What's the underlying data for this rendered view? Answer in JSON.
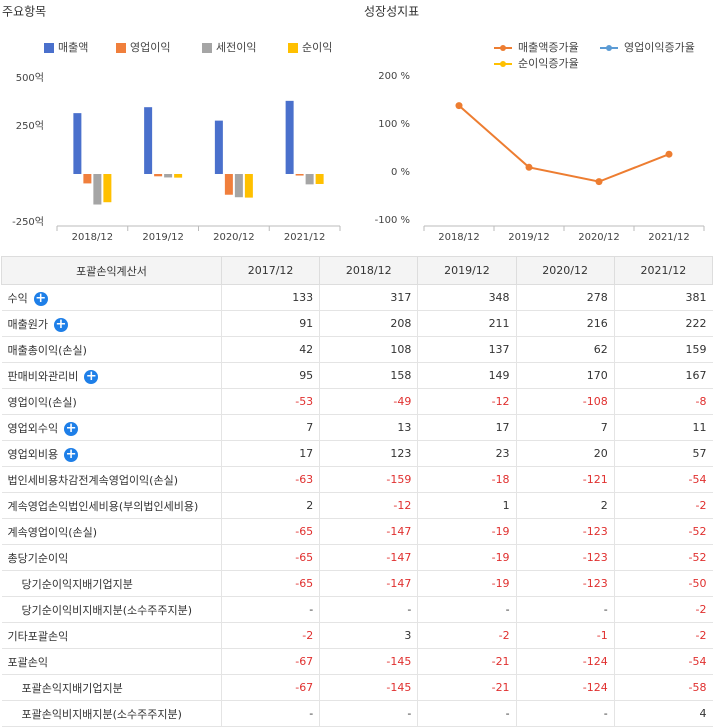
{
  "chart_data": [
    {
      "type": "bar",
      "title": "주요항목",
      "categories": [
        "2018/12",
        "2019/12",
        "2020/12",
        "2021/12"
      ],
      "series": [
        {
          "name": "매출액",
          "color": "#4a70cc",
          "values": [
            317,
            348,
            278,
            381
          ]
        },
        {
          "name": "영업이익",
          "color": "#f07f3c",
          "values": [
            -49,
            -12,
            -108,
            -8
          ]
        },
        {
          "name": "세전이익",
          "color": "#a5a5a5",
          "values": [
            -159,
            -18,
            -121,
            -54
          ]
        },
        {
          "name": "순이익",
          "color": "#ffc000",
          "values": [
            -147,
            -19,
            -123,
            -52
          ]
        }
      ],
      "ylim": [
        -250,
        500
      ],
      "yticks": [
        {
          "value": 500,
          "label": "500억"
        },
        {
          "value": 250,
          "label": "250억"
        },
        {
          "value": -250,
          "label": "-250억"
        }
      ],
      "grid": false
    },
    {
      "type": "line",
      "title": "성장성지표",
      "categories": [
        "2018/12",
        "2019/12",
        "2020/12",
        "2021/12"
      ],
      "series": [
        {
          "name": "매출액증가율",
          "color": "#ed7d31",
          "values": [
            138.3,
            9.8,
            -20.1,
            37.1
          ]
        },
        {
          "name": "영업이익증가율",
          "color": "#5b9bd5",
          "values": [
            null,
            null,
            null,
            null
          ]
        },
        {
          "name": "순이익증가율",
          "color": "#ffc000",
          "values": [
            null,
            null,
            null,
            null
          ]
        }
      ],
      "ylim": [
        -100,
        200
      ],
      "yticks": [
        {
          "value": 200,
          "label": "200 %"
        },
        {
          "value": 100,
          "label": "100 %"
        },
        {
          "value": 0,
          "label": "0 %"
        },
        {
          "value": -100,
          "label": "-100 %"
        }
      ],
      "grid": false
    }
  ],
  "table": {
    "header": [
      "포괄손익계산서",
      "2017/12",
      "2018/12",
      "2019/12",
      "2020/12",
      "2021/12"
    ],
    "rows": [
      {
        "label": "수익",
        "expandable": true,
        "indent": false,
        "values": [
          133,
          317,
          348,
          278,
          381
        ]
      },
      {
        "label": "매출원가",
        "expandable": true,
        "indent": false,
        "values": [
          91,
          208,
          211,
          216,
          222
        ]
      },
      {
        "label": "매출총이익(손실)",
        "expandable": false,
        "indent": false,
        "values": [
          42,
          108,
          137,
          62,
          159
        ]
      },
      {
        "label": "판매비와관리비",
        "expandable": true,
        "indent": false,
        "values": [
          95,
          158,
          149,
          170,
          167
        ]
      },
      {
        "label": "영업이익(손실)",
        "expandable": false,
        "indent": false,
        "values": [
          -53,
          -49,
          -12,
          -108,
          -8
        ]
      },
      {
        "label": "영업외수익",
        "expandable": true,
        "indent": false,
        "values": [
          7,
          13,
          17,
          7,
          11
        ]
      },
      {
        "label": "영업외비용",
        "expandable": true,
        "indent": false,
        "values": [
          17,
          123,
          23,
          20,
          57
        ]
      },
      {
        "label": "법인세비용차감전계속영업이익(손실)",
        "expandable": false,
        "indent": false,
        "values": [
          -63,
          -159,
          -18,
          -121,
          -54
        ]
      },
      {
        "label": "계속영업손익법인세비용(부의법인세비용)",
        "expandable": false,
        "indent": false,
        "values": [
          2,
          -12,
          1,
          2,
          -2
        ]
      },
      {
        "label": "계속영업이익(손실)",
        "expandable": false,
        "indent": false,
        "values": [
          -65,
          -147,
          -19,
          -123,
          -52
        ]
      },
      {
        "label": "총당기순이익",
        "expandable": false,
        "indent": false,
        "values": [
          -65,
          -147,
          -19,
          -123,
          -52
        ]
      },
      {
        "label": "당기순이익지배기업지분",
        "expandable": false,
        "indent": true,
        "values": [
          -65,
          -147,
          -19,
          -123,
          -50
        ]
      },
      {
        "label": "당기순이익비지배지분(소수주주지분)",
        "expandable": false,
        "indent": true,
        "values": [
          "-",
          "-",
          "-",
          "-",
          -2
        ]
      },
      {
        "label": "기타포괄손익",
        "expandable": false,
        "indent": false,
        "values": [
          -2,
          3,
          -2,
          -1,
          -2
        ]
      },
      {
        "label": "포괄손익",
        "expandable": false,
        "indent": false,
        "values": [
          -67,
          -145,
          -21,
          -124,
          -54
        ]
      },
      {
        "label": "포괄손익지배기업지분",
        "expandable": false,
        "indent": true,
        "values": [
          -67,
          -145,
          -21,
          -124,
          -58
        ]
      },
      {
        "label": "포괄손익비지배지분(소수주주지분)",
        "expandable": false,
        "indent": true,
        "values": [
          "-",
          "-",
          "-",
          "-",
          4
        ]
      }
    ]
  }
}
